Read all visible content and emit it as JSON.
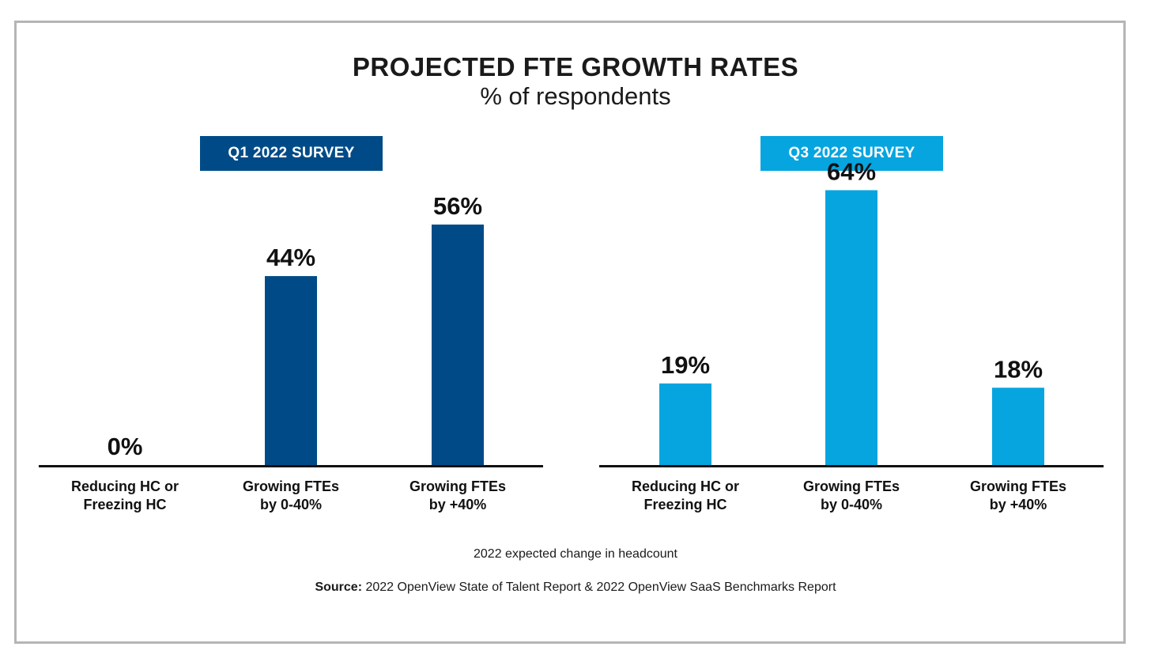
{
  "title": "PROJECTED FTE GROWTH RATES",
  "subtitle": "% of respondents",
  "caption": "2022 expected change in headcount",
  "source": {
    "label": "Source:",
    "text": "2022 OpenView State of Talent Report & 2022 OpenView SaaS Benchmarks Report"
  },
  "colors": {
    "q1": "#004b87",
    "q3": "#06a5e0",
    "axis": "#111111",
    "frame": "#b5b5b5"
  },
  "chart_data": [
    {
      "type": "bar",
      "title": "Q1 2022 SURVEY",
      "categories": [
        [
          "Reducing HC or",
          "Freezing HC"
        ],
        [
          "Growing FTEs",
          "by 0-40%"
        ],
        [
          "Growing FTEs",
          "by +40%"
        ]
      ],
      "values": [
        0,
        44,
        56
      ],
      "value_labels": [
        "0%",
        "44%",
        "56%"
      ],
      "color": "#004b87",
      "ylim": [
        0,
        100
      ]
    },
    {
      "type": "bar",
      "title": "Q3 2022 SURVEY",
      "categories": [
        [
          "Reducing HC or",
          "Freezing HC"
        ],
        [
          "Growing FTEs",
          "by 0-40%"
        ],
        [
          "Growing FTEs",
          "by +40%"
        ]
      ],
      "values": [
        19,
        64,
        18
      ],
      "value_labels": [
        "19%",
        "64%",
        "18%"
      ],
      "color": "#06a5e0",
      "ylim": [
        0,
        100
      ]
    }
  ]
}
